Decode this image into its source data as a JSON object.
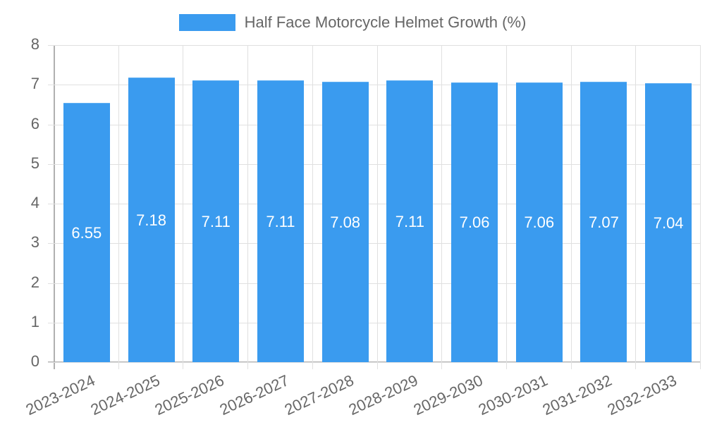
{
  "chart_data": {
    "type": "bar",
    "title": "",
    "legend": [
      "Half Face Motorcycle Helmet Growth (%)"
    ],
    "legend_position": "top",
    "categories": [
      "2023-2024",
      "2024-2025",
      "2025-2026",
      "2026-2027",
      "2027-2028",
      "2028-2029",
      "2029-2030",
      "2030-2031",
      "2031-2032",
      "2032-2033"
    ],
    "series": [
      {
        "name": "Half Face Motorcycle Helmet Growth (%)",
        "color": "#3a9bef",
        "values": [
          6.55,
          7.18,
          7.11,
          7.11,
          7.08,
          7.11,
          7.06,
          7.06,
          7.07,
          7.04
        ]
      }
    ],
    "value_labels": [
      "6.55",
      "7.18",
      "7.11",
      "7.11",
      "7.08",
      "7.11",
      "7.06",
      "7.06",
      "7.07",
      "7.04"
    ],
    "xlabel": "",
    "ylabel": "",
    "ylim": [
      0,
      8
    ],
    "yticks": [
      "8",
      "7",
      "6",
      "5",
      "4",
      "3",
      "2",
      "1",
      "0"
    ],
    "grid": true
  }
}
